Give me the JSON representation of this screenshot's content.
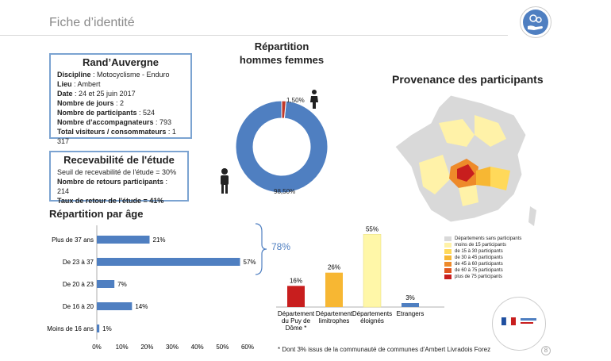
{
  "page": {
    "title": "Fiche d’identité",
    "page_number": "8"
  },
  "identity": {
    "title": "Rand’Auvergne",
    "rows": [
      {
        "label": "Discipline",
        "value": " : Motocyclisme - Enduro"
      },
      {
        "label": "Lieu",
        "value": " : Ambert"
      },
      {
        "label": "Date",
        "value": " : 24 et 25 juin 2017"
      },
      {
        "label": "Nombre de jours",
        "value": " : 2"
      },
      {
        "label": "Nombre de participants",
        "value": " : 524"
      },
      {
        "label": "Nombre d’accompagnateurs",
        "value": " : 793"
      },
      {
        "label": "Total visiteurs / consommateurs",
        "value": " : 1 317"
      }
    ]
  },
  "recevabilite": {
    "title": "Recevabilité de l'étude",
    "line1": "Seuil de recevabilité de l'étude = 30%",
    "line2_label": "Nombre de retours participants",
    "line2_value": " : 214",
    "line3": "Taux de retour de l'étude = 41%"
  },
  "gender": {
    "title_line1": "Répartition",
    "title_line2": "hommes femmes",
    "women_pct_label": "1,50%",
    "men_pct_label": "98,50%",
    "colors": {
      "men": "#4f7fc1",
      "women": "#c0392b"
    }
  },
  "map": {
    "title": "Provenance des participants",
    "legend": [
      {
        "label": "Départements sans participants",
        "color": "#d9d9d9"
      },
      {
        "label": "moins de 15 participants",
        "color": "#fff2a8"
      },
      {
        "label": "de 15 à 30 participants",
        "color": "#ffd95a"
      },
      {
        "label": "de 30 à 45 participants",
        "color": "#f7b733"
      },
      {
        "label": "de 45 à 60 participants",
        "color": "#ee8a2a"
      },
      {
        "label": "de 60 à 75 participants",
        "color": "#e0561f"
      },
      {
        "label": "plus de 75 participants",
        "color": "#c81e1e"
      }
    ]
  },
  "age": {
    "title": "Répartition par âge",
    "bracket_label": "78%",
    "note": "* Dont 3% issus de la communauté de communes d’Ambert Livradois Forez"
  },
  "chart_data": [
    {
      "type": "bar",
      "orientation": "horizontal",
      "title": "Répartition par âge",
      "categories": [
        "Plus de 37 ans",
        "De 23 à 37",
        "De 20 à 23",
        "De 16 à 20",
        "Moins de 16 ans"
      ],
      "values": [
        21,
        57,
        7,
        14,
        1
      ],
      "value_labels": [
        "21%",
        "57%",
        "7%",
        "14%",
        "1%"
      ],
      "xlim": [
        0,
        60
      ],
      "xticks": [
        "0%",
        "10%",
        "20%",
        "30%",
        "40%",
        "50%",
        "60%"
      ],
      "color": "#4f7fc1"
    },
    {
      "type": "pie",
      "title": "Répartition hommes femmes",
      "categories": [
        "hommes",
        "femmes"
      ],
      "values": [
        98.5,
        1.5
      ]
    },
    {
      "type": "bar",
      "categories": [
        "Département du Puy de Dôme *",
        "Département limitrophes",
        "Départements éloignés",
        "Etrangers"
      ],
      "category_lines": [
        [
          "Département",
          "du Puy de",
          "Dôme *"
        ],
        [
          "Département",
          "limitrophes"
        ],
        [
          "Départements",
          "éloignés"
        ],
        [
          "Etrangers"
        ]
      ],
      "values": [
        16,
        26,
        55,
        3
      ],
      "value_labels": [
        "16%",
        "26%",
        "55%",
        "3%"
      ],
      "colors": [
        "#c81e1e",
        "#f7b733",
        "#fff7a8",
        "#4f7fc1"
      ],
      "ylim": [
        0,
        60
      ]
    }
  ]
}
